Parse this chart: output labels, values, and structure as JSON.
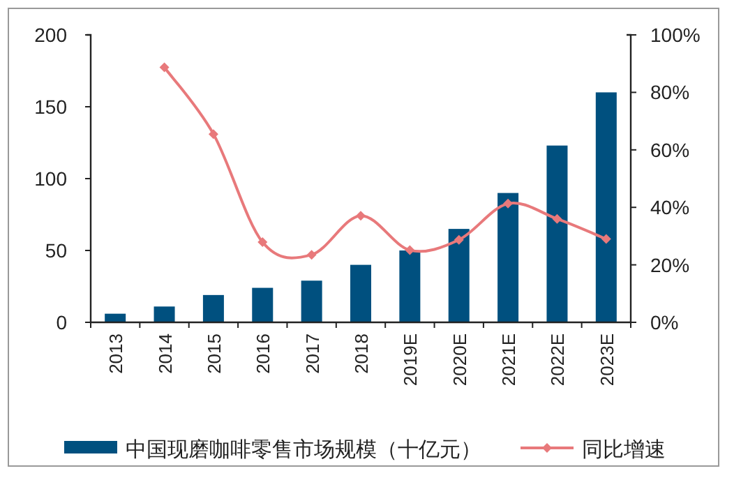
{
  "chart_data": {
    "type": "bar",
    "categories": [
      "2013",
      "2014",
      "2015",
      "2016",
      "2017",
      "2018",
      "2019E",
      "2020E",
      "2021E",
      "2022E",
      "2023E"
    ],
    "series": [
      {
        "name": "中国现磨咖啡零售市场规模（十亿元）",
        "color": "#00507f",
        "values": [
          6,
          11,
          19,
          24,
          29,
          40,
          50,
          65,
          90,
          123,
          160
        ]
      },
      {
        "name": "同比增速",
        "type": "line",
        "axis": "y2",
        "color": "#e8797b",
        "marker": "diamond",
        "values": [
          null,
          88.7,
          65.5,
          27.9,
          23.5,
          37.1,
          25.1,
          28.7,
          41.3,
          36,
          29
        ]
      }
    ],
    "ylim": [
      0,
      200
    ],
    "yticks": [
      0,
      50,
      100,
      150,
      200
    ],
    "y2lim": [
      0,
      100
    ],
    "y2ticks": [
      {
        "value": 0,
        "label": "0%"
      },
      {
        "value": 20,
        "label": "20%"
      },
      {
        "value": 40,
        "label": "40%"
      },
      {
        "value": 60,
        "label": "60%"
      },
      {
        "value": 80,
        "label": "80%"
      },
      {
        "value": 100,
        "label": "100%"
      }
    ],
    "legend": "bottom"
  }
}
